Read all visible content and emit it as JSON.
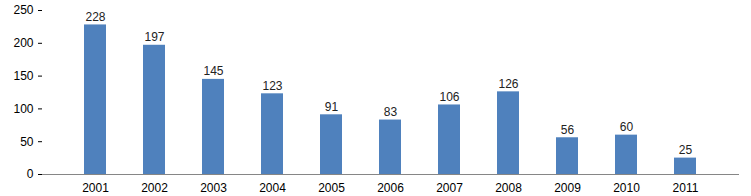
{
  "chart_data": {
    "type": "bar",
    "categories": [
      "2001",
      "2002",
      "2003",
      "2004",
      "2005",
      "2006",
      "2007",
      "2008",
      "2009",
      "2010",
      "2011"
    ],
    "values": [
      228,
      197,
      145,
      123,
      91,
      83,
      106,
      126,
      56,
      60,
      25
    ],
    "color": "#4f81bd",
    "ylim": [
      0,
      250
    ],
    "yticks": [
      0,
      50,
      100,
      150,
      200,
      250
    ],
    "grid": false,
    "data_labels": true
  }
}
